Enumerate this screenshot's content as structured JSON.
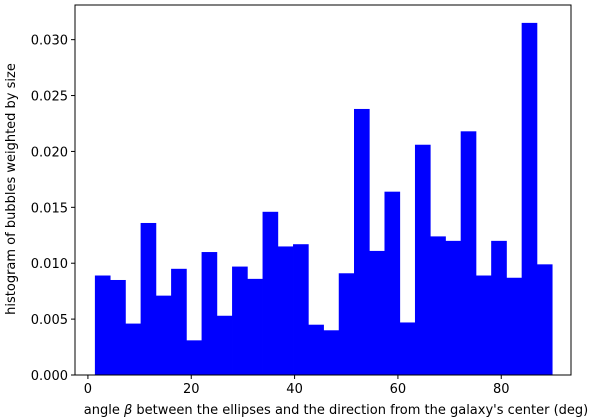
{
  "chart_data": {
    "type": "bar",
    "title": "",
    "xlabel_pre": "angle ",
    "xlabel_symbol": "β",
    "xlabel_post": " between the ellipses and the direction from the galaxy's center (deg)",
    "ylabel": "histogram of bubbles weighted by size",
    "xlim": [
      -2.5,
      93.5
    ],
    "ylim": [
      0,
      0.0331
    ],
    "xticks": [
      0,
      20,
      40,
      60,
      80
    ],
    "yticks": [
      0.0,
      0.005,
      0.01,
      0.015,
      0.02,
      0.025,
      0.03
    ],
    "yticks_text": [
      "0.000",
      "0.005",
      "0.010",
      "0.015",
      "0.020",
      "0.025",
      "0.030"
    ],
    "bin_start": 1.35,
    "bin_width": 2.95,
    "bar_color": "#0000ff",
    "values": [
      0.0089,
      0.0085,
      0.0046,
      0.0136,
      0.0071,
      0.0095,
      0.0031,
      0.011,
      0.0053,
      0.0097,
      0.0086,
      0.0146,
      0.0115,
      0.0117,
      0.0045,
      0.004,
      0.0091,
      0.0238,
      0.0111,
      0.0164,
      0.0047,
      0.0206,
      0.0124,
      0.012,
      0.0218,
      0.0089,
      0.012,
      0.0087,
      0.0315,
      0.0099
    ]
  }
}
